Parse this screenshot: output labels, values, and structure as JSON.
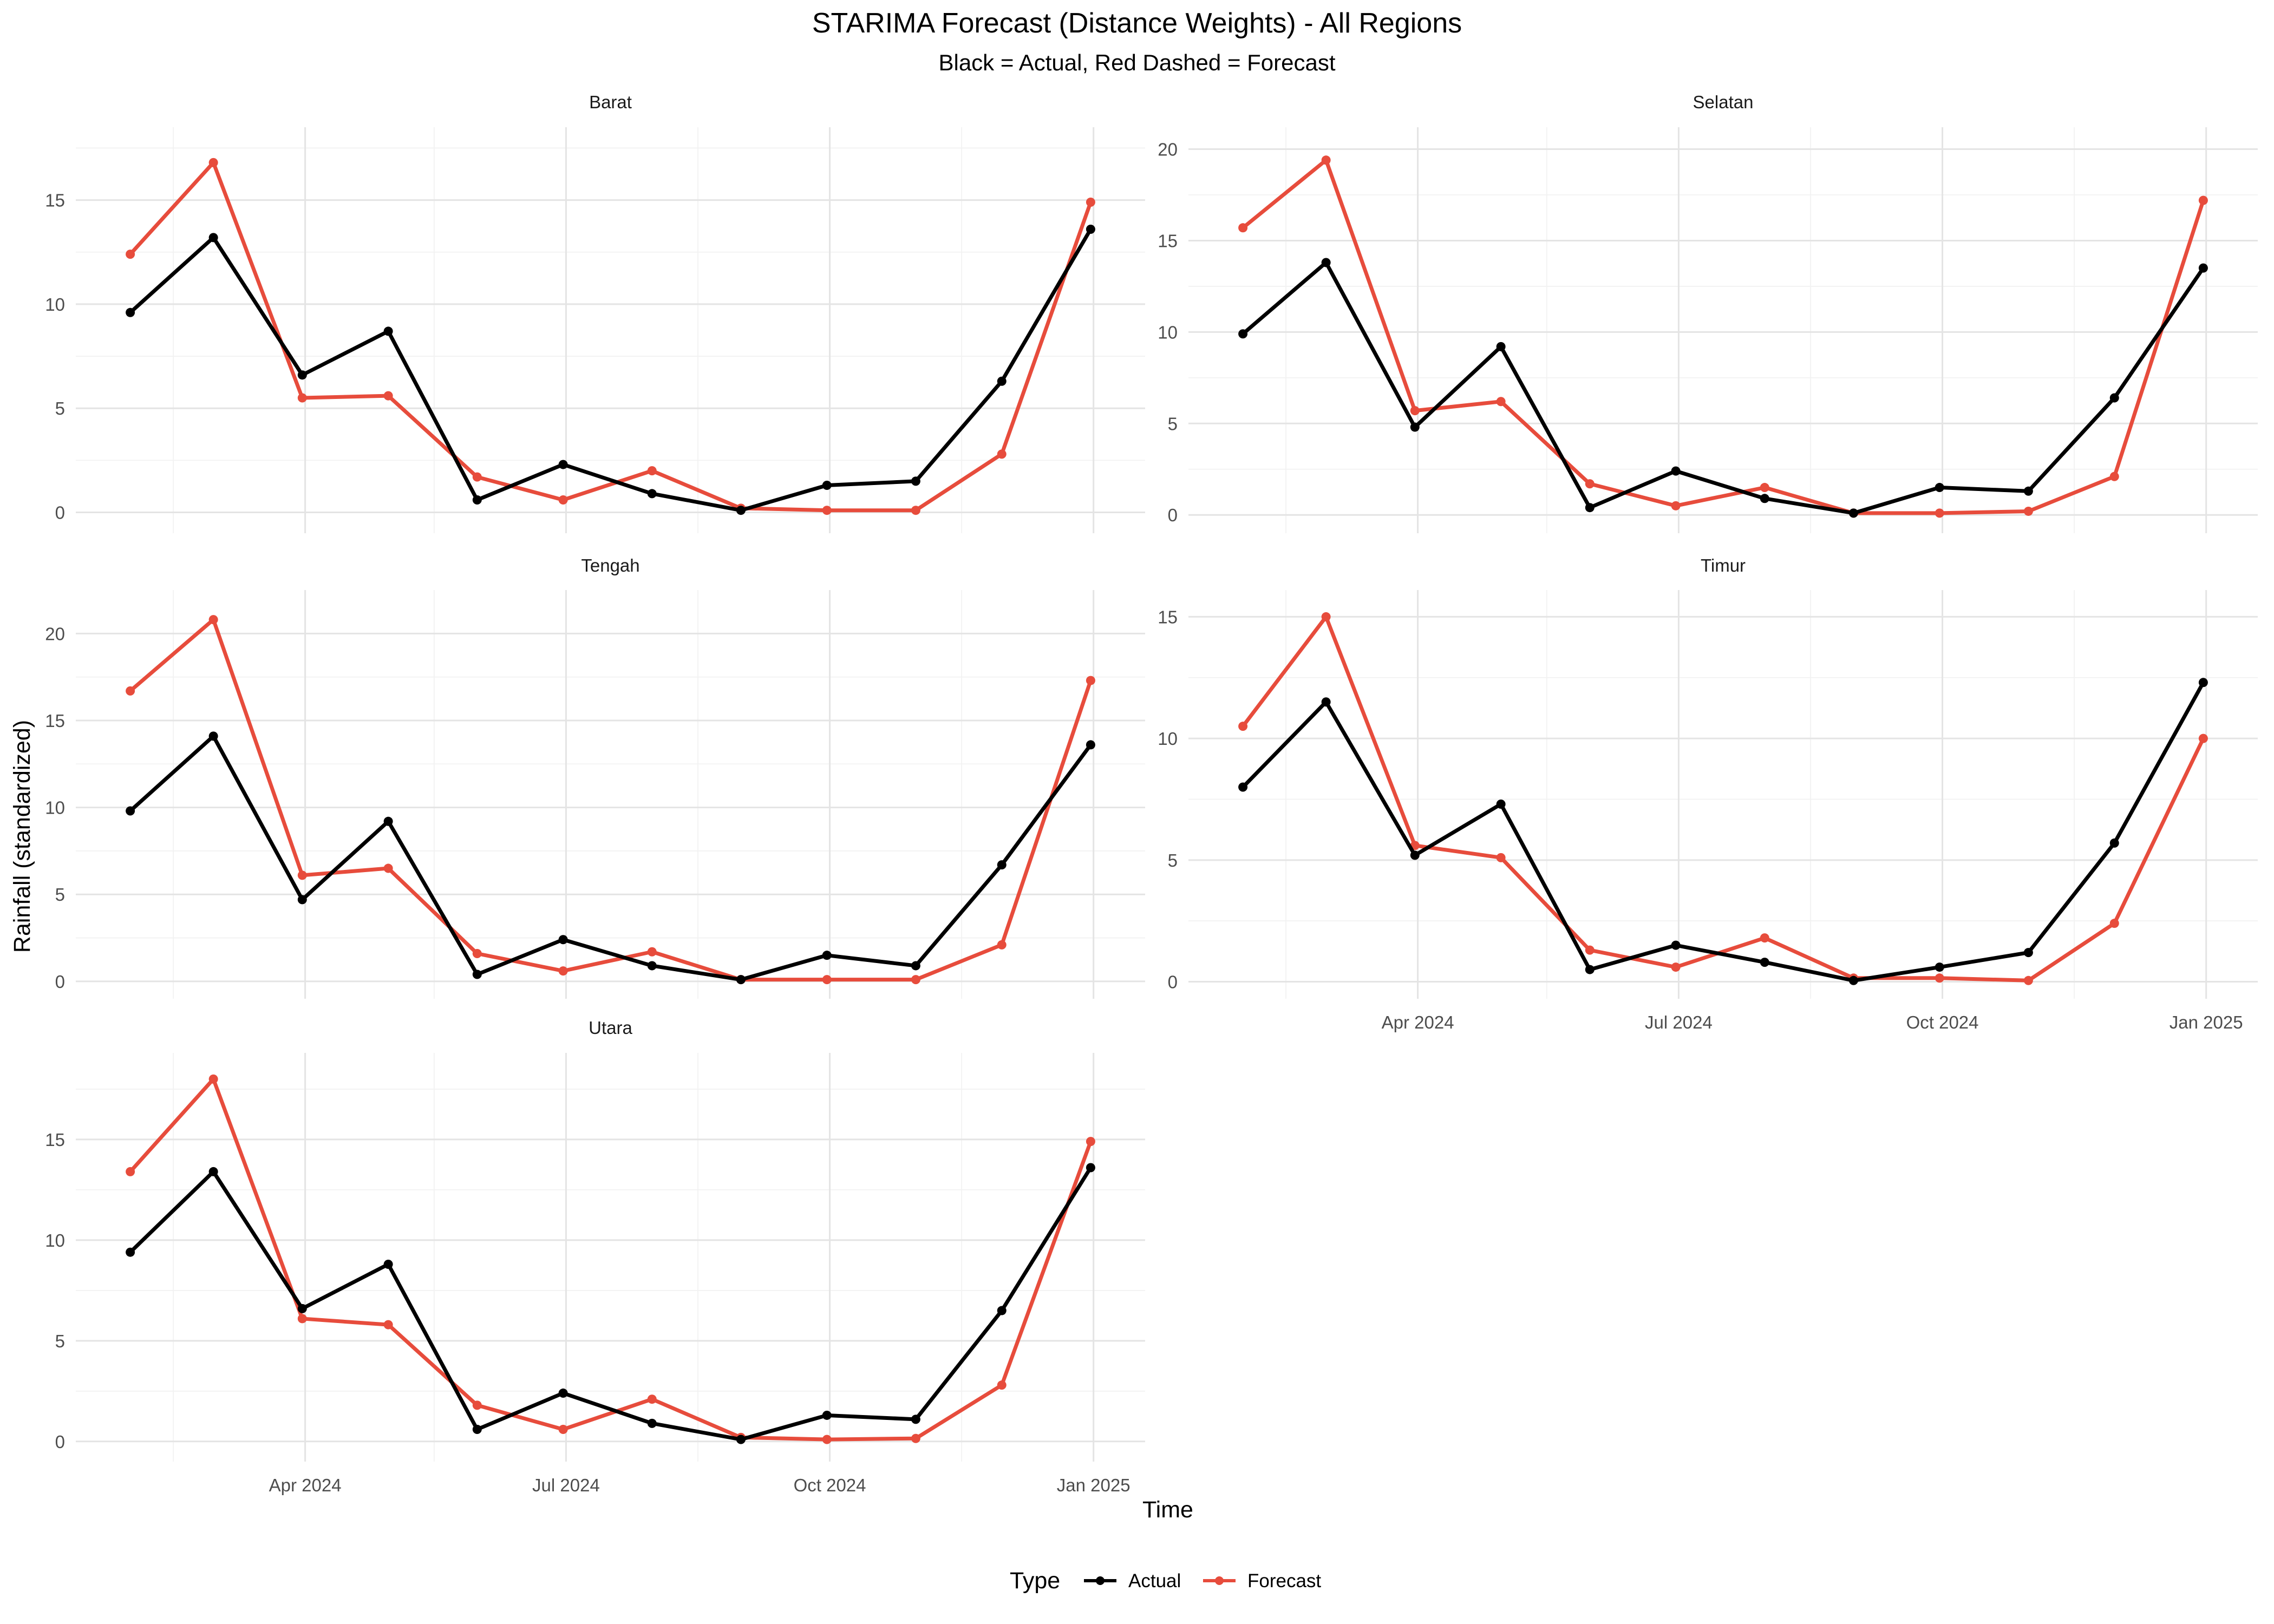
{
  "title": "STARIMA Forecast (Distance Weights) - All Regions",
  "subtitle": "Black = Actual, Red Dashed = Forecast",
  "xlabel": "Time",
  "ylabel": "Rainfall (standardized)",
  "legend": {
    "title": "Type",
    "items": [
      {
        "label": "Actual",
        "color": "#000000"
      },
      {
        "label": "Forecast",
        "color": "#e74c3c"
      }
    ]
  },
  "colors": {
    "actual": "#000000",
    "forecast": "#e74c3c"
  },
  "chart_data": {
    "type": "line",
    "layout": "facet_wrap, 2 columns",
    "x": [
      "2024-01-31",
      "2024-02-29",
      "2024-03-31",
      "2024-04-30",
      "2024-05-31",
      "2024-06-30",
      "2024-07-31",
      "2024-08-31",
      "2024-09-30",
      "2024-10-31",
      "2024-11-30",
      "2024-12-31"
    ],
    "x_tick_labels": [
      {
        "date": "2024-04-01",
        "label": "Apr 2024"
      },
      {
        "date": "2024-07-01",
        "label": "Jul 2024"
      },
      {
        "date": "2024-10-01",
        "label": "Oct 2024"
      },
      {
        "date": "2025-01-01",
        "label": "Jan 2025"
      }
    ],
    "grid": true,
    "legend_position": "bottom",
    "panels": [
      {
        "name": "Barat",
        "ylim": [
          -1,
          18.5
        ],
        "y_ticks": [
          0,
          5,
          10,
          15
        ],
        "series": [
          {
            "name": "Actual",
            "values": [
              9.6,
              13.2,
              6.6,
              8.7,
              0.6,
              2.3,
              0.9,
              0.1,
              1.3,
              1.5,
              6.3,
              13.6
            ]
          },
          {
            "name": "Forecast",
            "values": [
              12.4,
              16.8,
              5.5,
              5.6,
              1.7,
              0.6,
              2.0,
              0.2,
              0.1,
              0.1,
              2.8,
              14.9
            ]
          }
        ]
      },
      {
        "name": "Selatan",
        "ylim": [
          -1,
          21.2
        ],
        "y_ticks": [
          0,
          5,
          10,
          15,
          20
        ],
        "series": [
          {
            "name": "Actual",
            "values": [
              9.9,
              13.8,
              4.8,
              9.2,
              0.4,
              2.4,
              0.9,
              0.1,
              1.5,
              1.3,
              6.4,
              13.5
            ]
          },
          {
            "name": "Forecast",
            "values": [
              15.7,
              19.4,
              5.7,
              6.2,
              1.7,
              0.5,
              1.5,
              0.1,
              0.1,
              0.2,
              2.1,
              17.2
            ]
          }
        ]
      },
      {
        "name": "Tengah",
        "ylim": [
          -1,
          22.5
        ],
        "y_ticks": [
          0,
          5,
          10,
          15,
          20
        ],
        "series": [
          {
            "name": "Actual",
            "values": [
              9.8,
              14.1,
              4.7,
              9.2,
              0.4,
              2.4,
              0.9,
              0.1,
              1.5,
              0.9,
              6.7,
              13.6
            ]
          },
          {
            "name": "Forecast",
            "values": [
              16.7,
              20.8,
              6.1,
              6.5,
              1.6,
              0.6,
              1.7,
              0.1,
              0.1,
              0.1,
              2.1,
              17.3
            ]
          }
        ]
      },
      {
        "name": "Timur",
        "ylim": [
          -0.7,
          16.1
        ],
        "y_ticks": [
          0,
          5,
          10,
          15
        ],
        "series": [
          {
            "name": "Actual",
            "values": [
              8.0,
              11.5,
              5.2,
              7.3,
              0.5,
              1.5,
              0.8,
              0.05,
              0.6,
              1.2,
              5.7,
              12.3
            ]
          },
          {
            "name": "Forecast",
            "values": [
              10.5,
              15.0,
              5.6,
              5.1,
              1.3,
              0.6,
              1.8,
              0.15,
              0.15,
              0.05,
              2.4,
              10.0
            ]
          }
        ]
      },
      {
        "name": "Utara",
        "ylim": [
          -1,
          19.3
        ],
        "y_ticks": [
          0,
          5,
          10,
          15
        ],
        "series": [
          {
            "name": "Actual",
            "values": [
              9.4,
              13.4,
              6.6,
              8.8,
              0.6,
              2.4,
              0.9,
              0.1,
              1.3,
              1.1,
              6.5,
              13.6
            ]
          },
          {
            "name": "Forecast",
            "values": [
              13.4,
              18.0,
              6.1,
              5.8,
              1.8,
              0.6,
              2.1,
              0.2,
              0.1,
              0.15,
              2.8,
              14.9
            ]
          }
        ]
      }
    ]
  }
}
